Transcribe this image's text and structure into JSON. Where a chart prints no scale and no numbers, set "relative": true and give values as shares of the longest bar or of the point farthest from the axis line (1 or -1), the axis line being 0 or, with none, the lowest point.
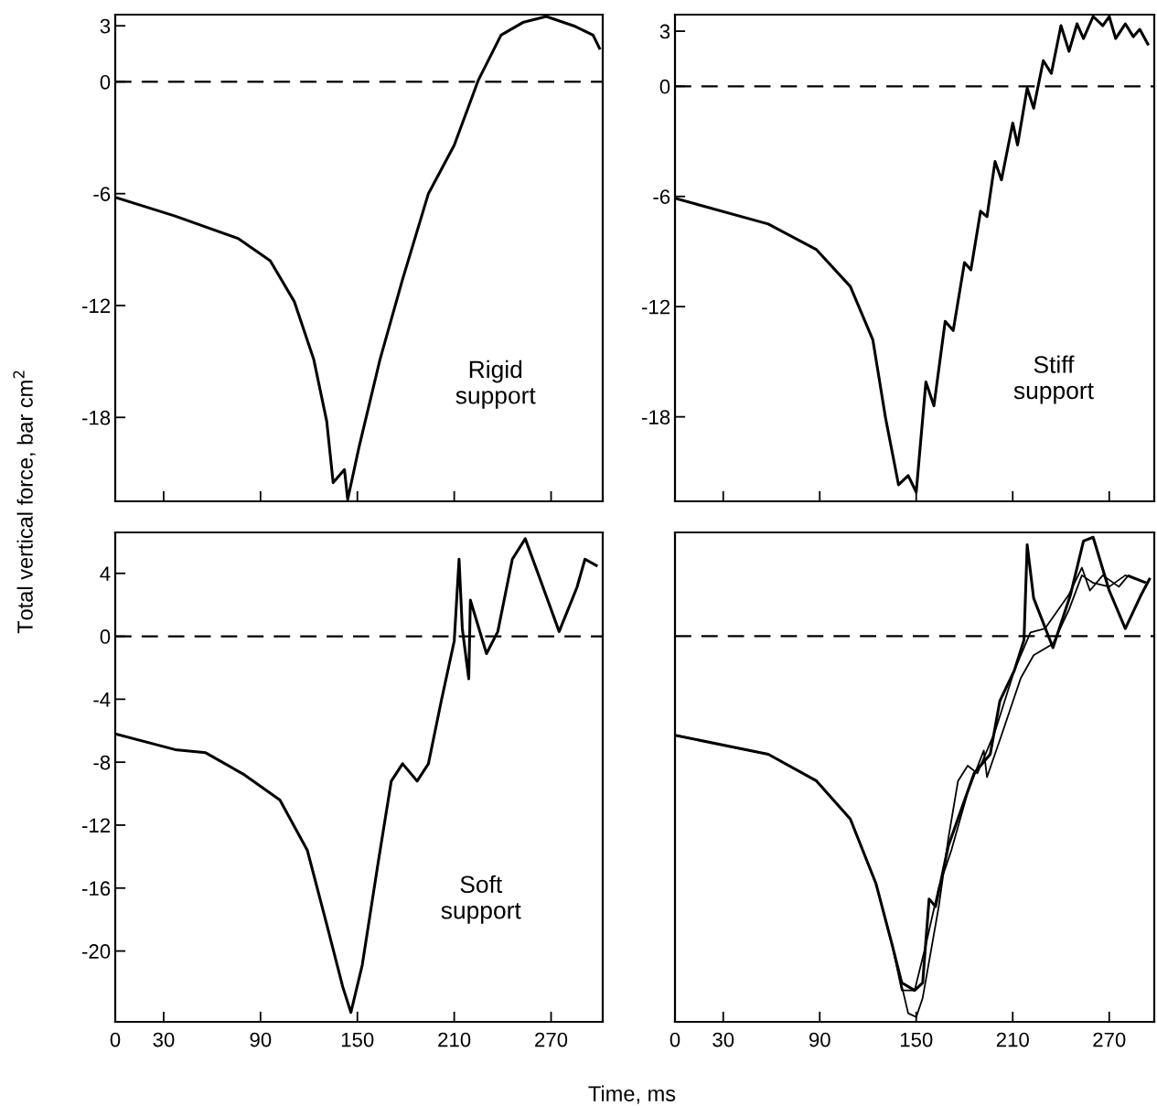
{
  "chart_data": [
    {
      "type": "line",
      "ylabel": "Total vertical force, bar cm$^{2}$",
      "annotations": [
        "Rigid\nsupport"
      ],
      "xlim": [
        0,
        302
      ],
      "ylim": [
        -22.5,
        3.6
      ],
      "xticks": [
        0,
        30,
        90,
        150,
        210,
        270
      ],
      "yticks": [
        3,
        0,
        -6,
        -12,
        -18
      ],
      "tick_labels": "y",
      "grid": false,
      "line_style": "solid",
      "marker": "none",
      "ref_lines": [
        {
          "axis": "y",
          "value": 0,
          "line_style": "dashed",
          "color": "#000000"
        }
      ],
      "series": [
        {
          "color": "#000000",
          "x": [
            0,
            37,
            76,
            96,
            111,
            123,
            131,
            135,
            142,
            144,
            151,
            164,
            178,
            194,
            210,
            225,
            239,
            253,
            267,
            284,
            296,
            300
          ],
          "values": [
            -6.2,
            -7.2,
            -8.4,
            -9.6,
            -11.8,
            -14.9,
            -18.2,
            -21.5,
            -20.8,
            -22.4,
            -19.6,
            -14.9,
            -10.6,
            -6.0,
            -3.4,
            0.1,
            2.5,
            3.2,
            3.5,
            3.0,
            2.5,
            1.8
          ]
        }
      ]
    },
    {
      "type": "line",
      "annotations": [
        "Stiff\nsupport"
      ],
      "xlim": [
        0,
        298
      ],
      "ylim": [
        -22.6,
        3.9
      ],
      "xticks": [
        0,
        30,
        90,
        150,
        210,
        270
      ],
      "yticks": [
        3,
        0,
        -6,
        -12,
        -18
      ],
      "tick_labels": "y",
      "grid": false,
      "line_style": "solid",
      "marker": "none",
      "ref_lines": [
        {
          "axis": "y",
          "value": 0,
          "line_style": "dashed",
          "color": "#000000"
        }
      ],
      "series": [
        {
          "color": "#000000",
          "x": [
            0,
            58,
            88,
            109,
            123,
            131,
            139,
            145,
            150,
            156,
            161,
            168,
            173,
            180,
            184,
            190,
            194,
            199,
            203,
            210,
            213,
            219,
            223,
            229,
            234,
            240,
            245,
            250,
            254,
            260,
            266,
            270,
            274,
            280,
            285,
            289,
            294
          ],
          "values": [
            -6.1,
            -7.5,
            -8.9,
            -10.9,
            -13.8,
            -18.1,
            -21.7,
            -21.2,
            -22.1,
            -16.1,
            -17.4,
            -12.8,
            -13.3,
            -9.6,
            -10.0,
            -6.8,
            -7.1,
            -4.1,
            -5.1,
            -2.0,
            -3.2,
            -0.1,
            -1.2,
            1.4,
            0.7,
            3.3,
            1.9,
            3.4,
            2.6,
            3.8,
            3.3,
            3.8,
            2.6,
            3.4,
            2.7,
            3.1,
            2.3
          ]
        }
      ]
    },
    {
      "type": "line",
      "xlabel": "Time, ms",
      "annotations": [
        "Soft\nsupport"
      ],
      "xlim": [
        0,
        302
      ],
      "ylim": [
        -24.5,
        6.6
      ],
      "xticks": [
        0,
        30,
        90,
        150,
        210,
        270
      ],
      "yticks": [
        4,
        0,
        -4,
        -8,
        -12,
        -16,
        -20
      ],
      "grid": false,
      "line_style": "solid",
      "marker": "none",
      "ref_lines": [
        {
          "axis": "y",
          "value": 0,
          "line_style": "dashed",
          "color": "#000000"
        }
      ],
      "series": [
        {
          "color": "#000000",
          "x": [
            0,
            37,
            56,
            80,
            102,
            119,
            131,
            141,
            146,
            153,
            163,
            171,
            178,
            187,
            194,
            202,
            210,
            213,
            215,
            219,
            220,
            230,
            237,
            246,
            254,
            264,
            275,
            286,
            291,
            298
          ],
          "values": [
            -6.2,
            -7.2,
            -7.4,
            -8.8,
            -10.4,
            -13.6,
            -18.3,
            -22.3,
            -23.9,
            -20.9,
            -14.3,
            -9.2,
            -8.1,
            -9.2,
            -8.1,
            -4.1,
            -0.3,
            4.9,
            0.5,
            -2.7,
            2.3,
            -1.1,
            0.3,
            4.9,
            6.2,
            3.4,
            0.3,
            3.1,
            4.9,
            4.5
          ]
        }
      ]
    },
    {
      "type": "line",
      "relative": true,
      "xlim": [
        0,
        298
      ],
      "xticks": [
        0,
        30,
        90,
        150,
        210,
        270
      ],
      "tick_labels": "x",
      "grid": false,
      "line_style": "solid",
      "marker": "none",
      "ref_lines": [
        {
          "axis": "y",
          "value": 0,
          "line_style": "dashed",
          "color": "#000000"
        }
      ],
      "series": [
        {
          "color": "#000000",
          "x": [
            0,
            58,
            88,
            109,
            125,
            135,
            141,
            149,
            154,
            158,
            162,
            170,
            186,
            196,
            202,
            211,
            217,
            219,
            223,
            235,
            246,
            254,
            260,
            270,
            280,
            290,
            295
          ],
          "values": [
            -0.26,
            -0.31,
            -0.38,
            -0.48,
            -0.65,
            -0.81,
            -0.91,
            -0.93,
            -0.91,
            -0.69,
            -0.71,
            -0.55,
            -0.36,
            -0.31,
            -0.17,
            -0.09,
            -0.01,
            0.24,
            0.1,
            -0.03,
            0.11,
            0.25,
            0.26,
            0.12,
            0.02,
            0.11,
            0.15
          ]
        },
        {
          "color": "#000000",
          "x": [
            0,
            58,
            88,
            109,
            125,
            135,
            145,
            150,
            154,
            164,
            170,
            176,
            182,
            188,
            199,
            211,
            221,
            230,
            245,
            253,
            258,
            266,
            276,
            282,
            294
          ],
          "values": [
            -0.26,
            -0.31,
            -0.38,
            -0.48,
            -0.65,
            -0.81,
            -0.99,
            -1.0,
            -0.95,
            -0.71,
            -0.53,
            -0.38,
            -0.34,
            -0.36,
            -0.25,
            -0.09,
            0.01,
            0.02,
            0.11,
            0.18,
            0.12,
            0.16,
            0.13,
            0.16,
            0.14
          ]
        },
        {
          "color": "#000000",
          "x": [
            0,
            58,
            88,
            109,
            125,
            135,
            141,
            149,
            156,
            164,
            172,
            182,
            192,
            194,
            203,
            215,
            223,
            235,
            245,
            253,
            260,
            270,
            280,
            292
          ],
          "values": [
            -0.26,
            -0.31,
            -0.38,
            -0.48,
            -0.65,
            -0.81,
            -0.93,
            -0.93,
            -0.81,
            -0.66,
            -0.56,
            -0.41,
            -0.3,
            -0.37,
            -0.26,
            -0.11,
            -0.05,
            -0.02,
            0.07,
            0.16,
            0.14,
            0.13,
            0.16,
            0.14
          ]
        }
      ]
    }
  ]
}
